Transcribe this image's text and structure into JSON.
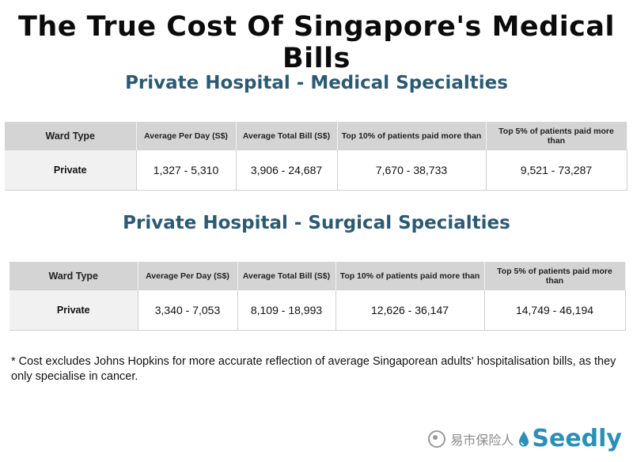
{
  "title": "The True Cost Of Singapore's Medical Bills",
  "sections": [
    {
      "title": "Private Hospital - Medical Specialties",
      "headers": [
        "Ward Type",
        "Average Per Day (S$)",
        "Average Total Bill (S$)",
        "Top 10% of patients paid more than",
        "Top 5% of patients paid more than"
      ],
      "row": [
        "Private",
        "1,327  - 5,310",
        "3,906 - 24,687",
        "7,670 - 38,733",
        "9,521 - 73,287"
      ]
    },
    {
      "title": "Private Hospital - Surgical Specialties",
      "headers": [
        "Ward Type",
        "Average Per Day (S$)",
        "Average Total Bill (S$)",
        "Top 10% of patients paid more than",
        "Top 5% of patients paid more than"
      ],
      "row": [
        "Private",
        "3,340  - 7,053",
        "8,109 - 18,993",
        "12,626 - 36,147",
        "14,749 - 46,194"
      ]
    }
  ],
  "footnote": "* Cost excludes Johns Hopkins for more accurate reflection of average Singaporean adults' hospitalisation bills, as they only specialise in cancer.",
  "watermark": {
    "text": "易市保险人",
    "brand": "Seedly",
    "icon": "wechat-icon"
  },
  "colors": {
    "section_title": "#2b5a73",
    "header_bg": "#d4d4d4",
    "brand": "#2c8fb5"
  }
}
